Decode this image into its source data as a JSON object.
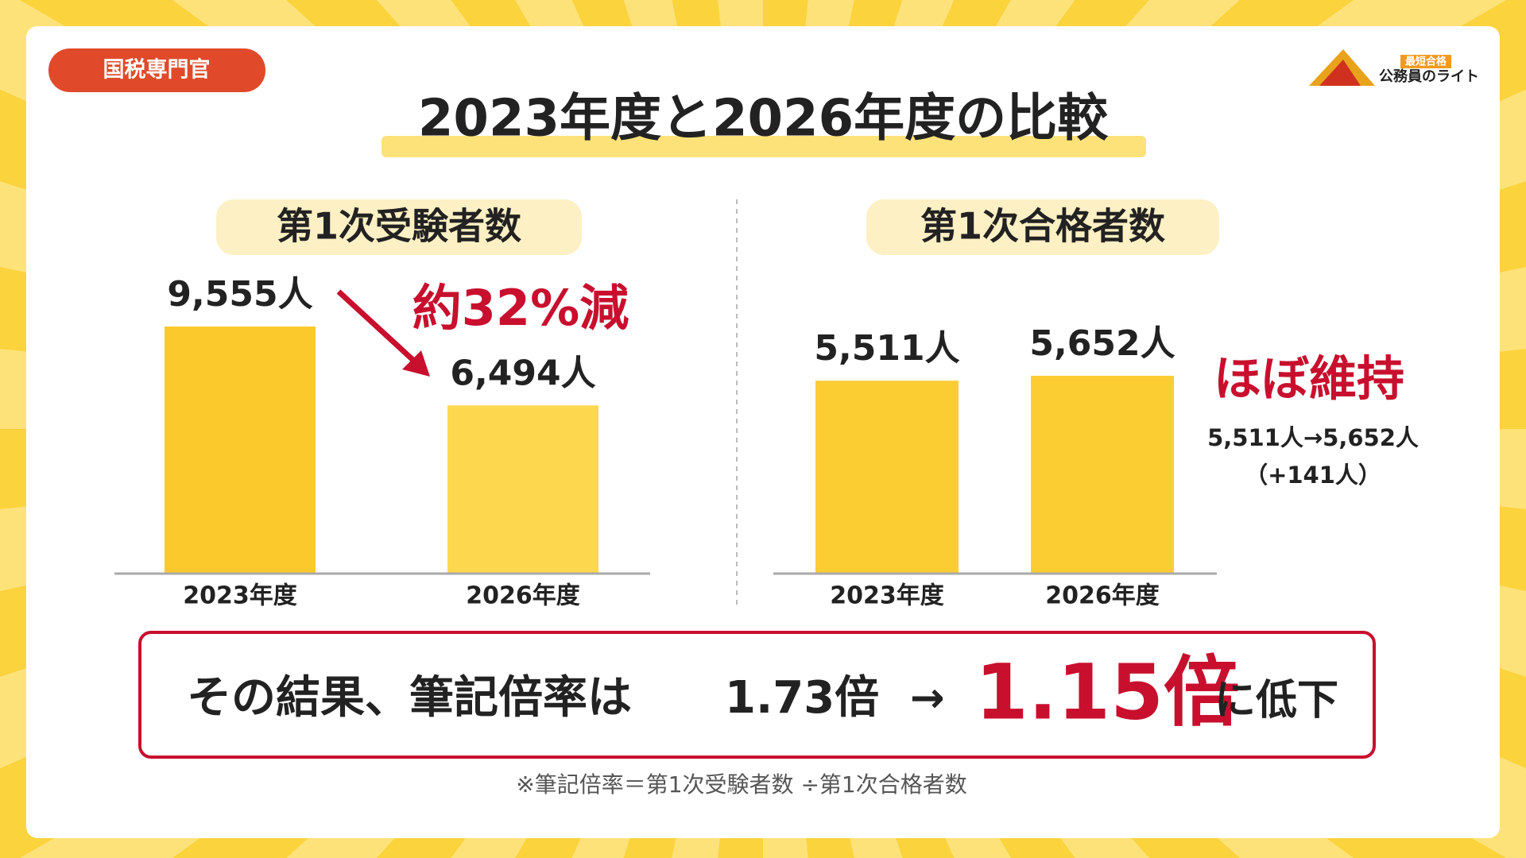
{
  "tag": "国税専門官",
  "logo": {
    "badge": "最短合格",
    "name": "公務員のライト"
  },
  "title": "2023年度と2026年度の比較",
  "chart_data": [
    {
      "type": "bar",
      "title": "第1次受験者数",
      "categories": [
        "2023年度",
        "2026年度"
      ],
      "values": [
        9555,
        6494
      ],
      "value_labels": [
        "9,555人",
        "6,494人"
      ],
      "colors": [
        "#fbc92c",
        "#fdd84e"
      ],
      "annotation": "約32%減"
    },
    {
      "type": "bar",
      "title": "第1次合格者数",
      "categories": [
        "2023年度",
        "2026年度"
      ],
      "values": [
        5511,
        5652
      ],
      "value_labels": [
        "5,511人",
        "5,652人"
      ],
      "colors": [
        "#fccd33",
        "#fccd33"
      ],
      "annotation": "ほぼ維持",
      "notes": [
        "5,511人→5,652人",
        "（+141人）"
      ]
    }
  ],
  "summary": {
    "lead": "その結果、筆記倍率は",
    "before": "1.73倍",
    "arrow": "→",
    "after": "1.15倍",
    "tail": "に低下"
  },
  "footnote": "※筆記倍率＝第1次受験者数 ÷第1次合格者数"
}
